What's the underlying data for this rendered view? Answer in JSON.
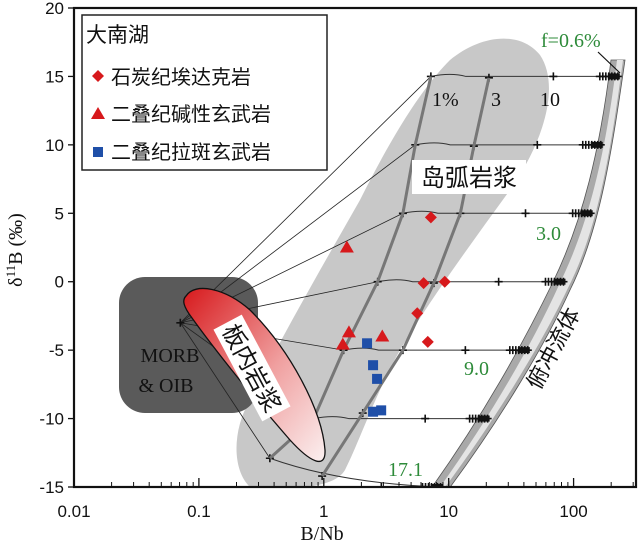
{
  "chart_data": {
    "type": "scatter",
    "xlabel": "B/Nb",
    "ylabel": "δ11B (‰)",
    "ylabel_main": "δ",
    "ylabel_sup": "11",
    "ylabel_rest": "B (‰)",
    "x_scale": "log",
    "xlim": [
      0.01,
      316
    ],
    "ylim": [
      -15,
      20
    ],
    "x_ticks": [
      0.01,
      0.1,
      1,
      10,
      100
    ],
    "x_tick_labels": [
      "0.01",
      "0.1",
      "1",
      "10",
      "100"
    ],
    "y_ticks": [
      -15,
      -10,
      -5,
      0,
      5,
      10,
      15,
      20
    ],
    "y_tick_labels": [
      "-15",
      "-10",
      "-5",
      "0",
      "5",
      "10",
      "15",
      "20"
    ],
    "grid": false,
    "legend": {
      "placement": "top-left",
      "title": "大南湖",
      "entries": [
        "石炭纪埃达克岩",
        "二叠纪碱性玄武岩",
        "二叠纪拉斑玄武岩"
      ]
    },
    "series": [
      {
        "name": "石炭纪埃达克岩",
        "marker": "diamond",
        "color": "#d7191c",
        "points": [
          [
            7.2,
            4.7
          ],
          [
            6.3,
            -0.1
          ],
          [
            9.3,
            0.0
          ],
          [
            5.6,
            -2.3
          ],
          [
            6.8,
            -4.4
          ]
        ]
      },
      {
        "name": "二叠纪碱性玄武岩",
        "marker": "triangle",
        "color": "#d7191c",
        "points": [
          [
            1.53,
            2.5
          ],
          [
            1.59,
            -3.7
          ],
          [
            1.42,
            -4.6
          ],
          [
            2.94,
            -4.0
          ]
        ]
      },
      {
        "name": "二叠纪拉斑玄武岩",
        "marker": "square",
        "color": "#1f4fa8",
        "points": [
          [
            2.22,
            -4.5
          ],
          [
            2.48,
            -6.1
          ],
          [
            2.67,
            -7.1
          ],
          [
            2.48,
            -9.5
          ],
          [
            2.88,
            -9.4
          ]
        ]
      }
    ],
    "model": {
      "source_point": [
        0.071,
        -3.0
      ],
      "fluid_end_points": [
        [
          226,
          15
        ],
        [
          165,
          10
        ],
        [
          137,
          5
        ],
        [
          83,
          0
        ],
        [
          43,
          -5
        ],
        [
          20.5,
          -10
        ],
        [
          8.6,
          -15
        ]
      ],
      "melt_1pct_points": [
        [
          7.2,
          15
        ],
        [
          5.4,
          10
        ],
        [
          4.3,
          5
        ],
        [
          2.7,
          0
        ],
        [
          1.44,
          -5
        ],
        [
          0.83,
          -10
        ],
        [
          0.37,
          -12.9
        ]
      ],
      "melt_3pct_points": [
        [
          21,
          14.9
        ],
        [
          15.9,
          9.9
        ],
        [
          12.4,
          5.0
        ],
        [
          7.6,
          -0.1
        ],
        [
          4.3,
          -5
        ],
        [
          2.05,
          -9.6
        ],
        [
          0.97,
          -14.2
        ]
      ]
    },
    "annotations": {
      "fraction_labels": [
        "1%",
        "3",
        "10"
      ],
      "fluid_fraction_labels": [
        "f=0.6%",
        "3.0",
        "9.0",
        "17.1"
      ],
      "fields": [
        "岛弧岩浆",
        "板内岩浆",
        "俯冲流体"
      ],
      "morb_line1": "MORB",
      "morb_line2": "& OIB"
    },
    "colors": {
      "field_gray": "#c8c8c8",
      "morb_gray": "#5a5a5a",
      "intraplate_red": "#d7191c",
      "label_green": "#2e8b3a"
    }
  }
}
